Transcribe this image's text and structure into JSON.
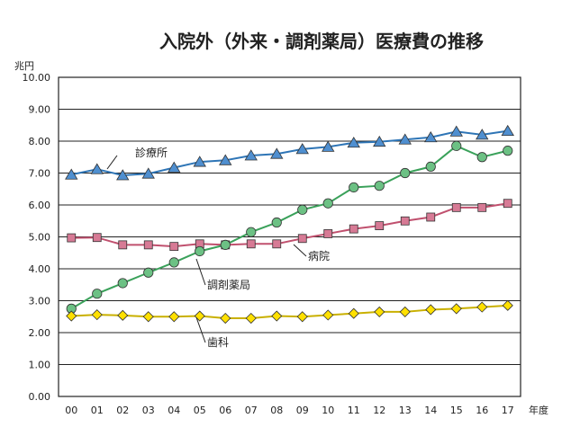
{
  "chart_data": {
    "type": "line",
    "title": "入院外（外来・調剤薬局）医療費の推移",
    "y_unit": "兆円",
    "x_unit": "年度",
    "categories": [
      "00",
      "01",
      "02",
      "03",
      "04",
      "05",
      "06",
      "07",
      "08",
      "09",
      "10",
      "11",
      "12",
      "13",
      "14",
      "15",
      "16",
      "17"
    ],
    "ylim": [
      0,
      10
    ],
    "y_ticks": [
      "0.00",
      "1.00",
      "2.00",
      "3.00",
      "4.00",
      "5.00",
      "6.00",
      "7.00",
      "8.00",
      "9.00",
      "10.00"
    ],
    "grid": true,
    "series": [
      {
        "name": "診療所",
        "marker": "triangle",
        "color": "#2e75b6",
        "fill": "#4f8fd0",
        "values": [
          6.95,
          7.12,
          6.93,
          6.98,
          7.17,
          7.35,
          7.4,
          7.55,
          7.6,
          7.75,
          7.82,
          7.95,
          7.98,
          8.05,
          8.12,
          8.3,
          8.2,
          8.32
        ]
      },
      {
        "name": "病院",
        "marker": "square",
        "color": "#c0506e",
        "fill": "#d77a95",
        "values": [
          4.97,
          4.98,
          4.75,
          4.75,
          4.7,
          4.78,
          4.75,
          4.78,
          4.78,
          4.95,
          5.1,
          5.25,
          5.35,
          5.5,
          5.62,
          5.92,
          5.92,
          6.05
        ]
      },
      {
        "name": "調剤薬局",
        "marker": "circle",
        "color": "#3aa15a",
        "fill": "#6cc184",
        "values": [
          2.75,
          3.22,
          3.55,
          3.88,
          4.2,
          4.55,
          4.75,
          5.15,
          5.45,
          5.85,
          6.05,
          6.55,
          6.6,
          7.0,
          7.2,
          7.85,
          7.5,
          7.7
        ]
      },
      {
        "name": "歯科",
        "marker": "diamond",
        "color": "#c9b000",
        "fill": "#ffe000",
        "values": [
          2.52,
          2.56,
          2.54,
          2.5,
          2.5,
          2.52,
          2.45,
          2.45,
          2.52,
          2.5,
          2.55,
          2.6,
          2.65,
          2.65,
          2.72,
          2.75,
          2.8,
          2.85
        ]
      }
    ]
  }
}
